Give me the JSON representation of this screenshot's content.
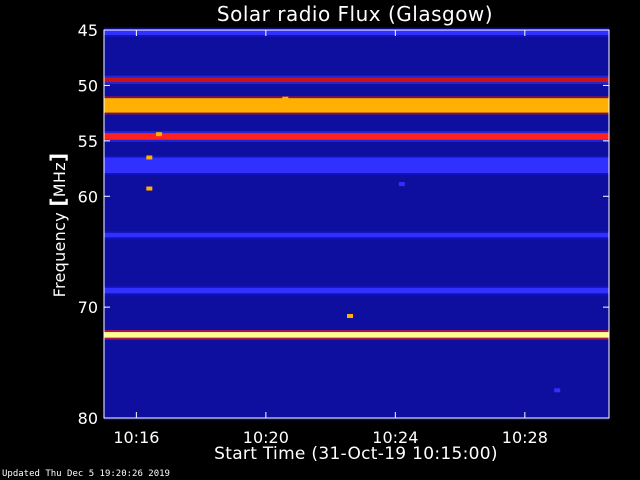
{
  "chart_data": {
    "type": "heatmap",
    "title": "Solar radio Flux (Glasgow)",
    "xlabel": "Start Time (31-Oct-19 10:15:00)",
    "ylabel_prefix": "Frequency ",
    "ylabel_unit": "MHz",
    "x_unit": "minutes after 10:15:00",
    "xlim": [
      0,
      15.6
    ],
    "ylim": [
      45,
      80
    ],
    "x_ticks": [
      {
        "value": 1,
        "label": "10:16"
      },
      {
        "value": 5,
        "label": "10:20"
      },
      {
        "value": 9,
        "label": "10:24"
      },
      {
        "value": 13,
        "label": "10:28"
      }
    ],
    "y_ticks": [
      {
        "value": 45,
        "label": "45"
      },
      {
        "value": 50,
        "label": "50"
      },
      {
        "value": 55,
        "label": "55"
      },
      {
        "value": 60,
        "label": "60"
      },
      {
        "value": 70,
        "label": "70"
      },
      {
        "value": 80,
        "label": "80"
      }
    ],
    "colorscale": [
      "#0a0a6e",
      "#1414c8",
      "#3030ff",
      "#c81414",
      "#ff2020",
      "#ffb000",
      "#ffff90"
    ],
    "bands": [
      {
        "freq": 45.2,
        "width": 0.5,
        "level": 0.35
      },
      {
        "freq": 49.5,
        "width": 0.4,
        "level": 0.42
      },
      {
        "freq": 51.8,
        "width": 1.3,
        "level": 0.78
      },
      {
        "freq": 54.6,
        "width": 0.6,
        "level": 0.62
      },
      {
        "freq": 57.2,
        "width": 1.4,
        "level": 0.33
      },
      {
        "freq": 63.5,
        "width": 0.4,
        "level": 0.4
      },
      {
        "freq": 68.5,
        "width": 0.5,
        "level": 0.32
      },
      {
        "freq": 72.5,
        "width": 0.5,
        "level": 1.0
      }
    ],
    "bursts": [
      {
        "x": 1.7,
        "freq": 54.4,
        "level": 0.85
      },
      {
        "x": 1.4,
        "freq": 56.5,
        "level": 0.75
      },
      {
        "x": 1.4,
        "freq": 59.3,
        "level": 0.85
      },
      {
        "x": 5.6,
        "freq": 51.2,
        "level": 0.9
      },
      {
        "x": 7.6,
        "freq": 70.8,
        "level": 0.9
      },
      {
        "x": 9.2,
        "freq": 58.9,
        "level": 0.3
      },
      {
        "x": 14.0,
        "freq": 77.5,
        "level": 0.3
      }
    ]
  },
  "footer": {
    "updated": "Updated Thu Dec  5 19:20:26 2019"
  }
}
